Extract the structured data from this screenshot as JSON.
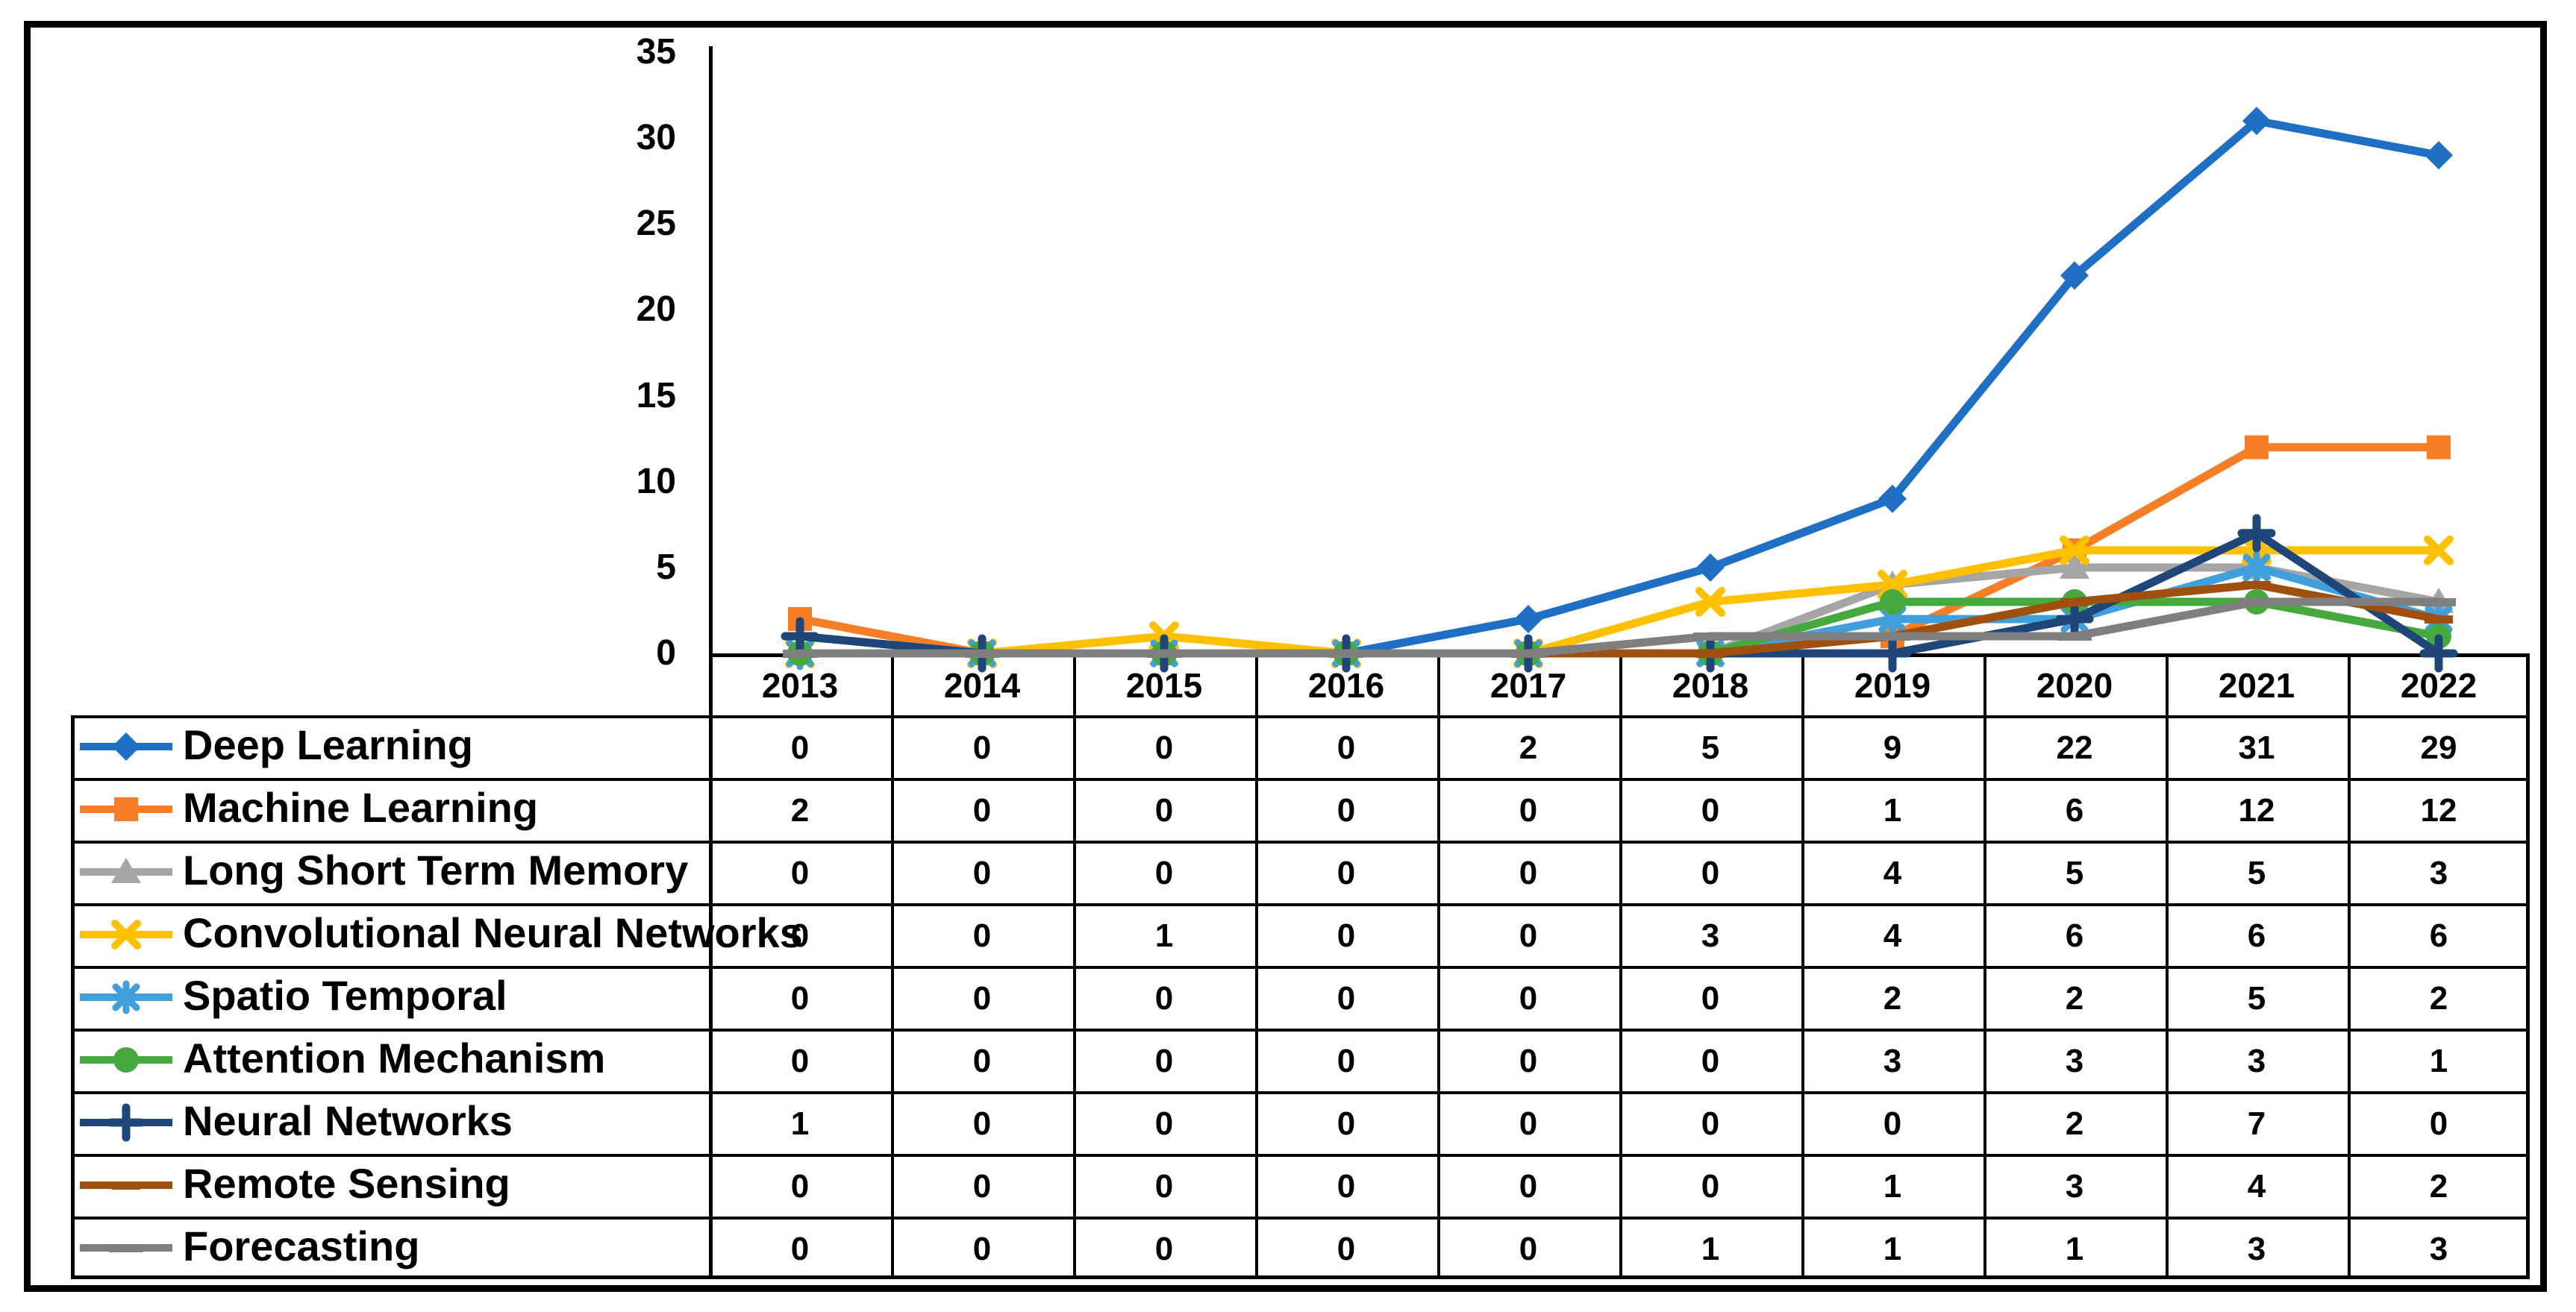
{
  "figure": {
    "background": "#FFFFFF",
    "border_color": "#000000",
    "axis_color": "#000000",
    "text_color": "#000000"
  },
  "chart_data": {
    "type": "line",
    "x": [
      "2013",
      "2014",
      "2015",
      "2016",
      "2017",
      "2018",
      "2019",
      "2020",
      "2021",
      "2022"
    ],
    "y_ticks": [
      "35",
      "30",
      "25",
      "20",
      "15",
      "10",
      "5",
      "0"
    ],
    "ylim": [
      0,
      35
    ],
    "grid": false,
    "legend_position": "table-left-column",
    "series": [
      {
        "name": "Deep Learning",
        "color": "#1F6FC4",
        "marker": "diamond",
        "values": [
          0,
          0,
          0,
          0,
          2,
          5,
          9,
          22,
          31,
          29
        ]
      },
      {
        "name": "Machine Learning",
        "color": "#F57E27",
        "marker": "square",
        "values": [
          2,
          0,
          0,
          0,
          0,
          0,
          1,
          6,
          12,
          12
        ]
      },
      {
        "name": "Long Short Term Memory",
        "color": "#A5A5A5",
        "marker": "triangle",
        "values": [
          0,
          0,
          0,
          0,
          0,
          0,
          4,
          5,
          5,
          3
        ]
      },
      {
        "name": "Convolutional Neural Networks",
        "color": "#FFC000",
        "marker": "x",
        "values": [
          0,
          0,
          1,
          0,
          0,
          3,
          4,
          6,
          6,
          6
        ]
      },
      {
        "name": "Spatio Temporal",
        "color": "#3FA0DB",
        "marker": "asterisk",
        "values": [
          0,
          0,
          0,
          0,
          0,
          0,
          2,
          2,
          5,
          2
        ]
      },
      {
        "name": "Attention Mechanism",
        "color": "#45A93E",
        "marker": "circle",
        "values": [
          0,
          0,
          0,
          0,
          0,
          0,
          3,
          3,
          3,
          1
        ]
      },
      {
        "name": "Neural Networks",
        "color": "#1E4679",
        "marker": "plus",
        "values": [
          1,
          0,
          0,
          0,
          0,
          0,
          0,
          2,
          7,
          0
        ]
      },
      {
        "name": "Remote Sensing",
        "color": "#A0500E",
        "marker": "dash",
        "values": [
          0,
          0,
          0,
          0,
          0,
          0,
          1,
          3,
          4,
          2
        ]
      },
      {
        "name": "Forecasting",
        "color": "#7F7F7F",
        "marker": "long-dash",
        "values": [
          0,
          0,
          0,
          0,
          0,
          1,
          1,
          1,
          3,
          3
        ]
      }
    ]
  }
}
